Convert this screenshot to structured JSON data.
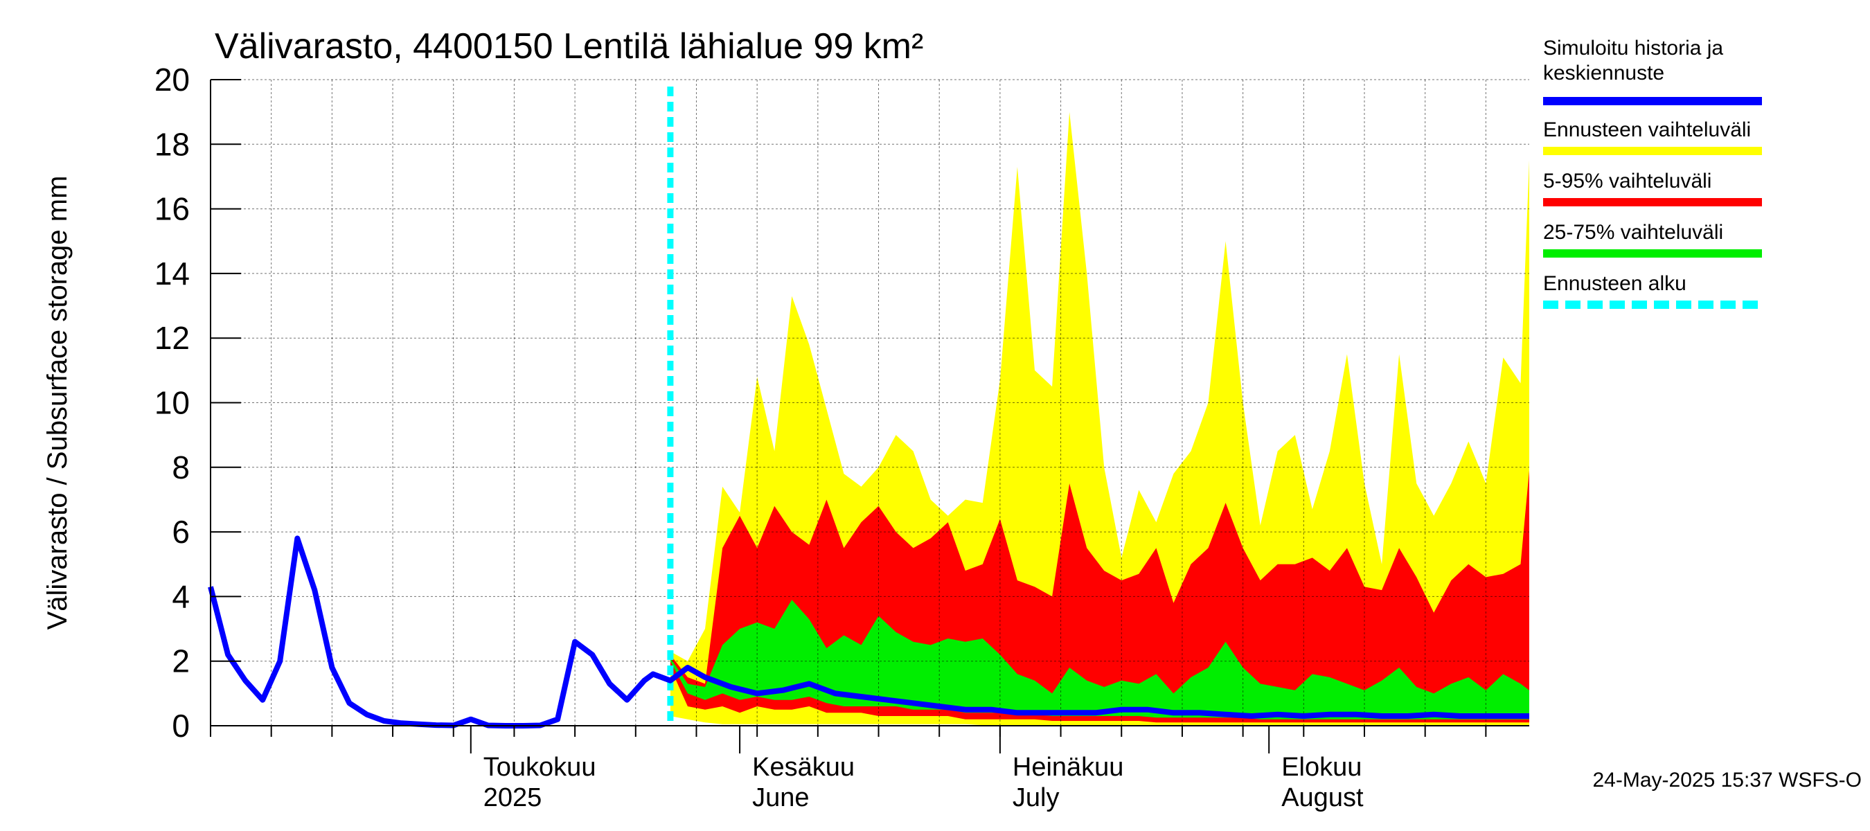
{
  "chart_data": {
    "type": "area",
    "title": "Välivarasto, 4400150 Lentilä lähialue 99 km²",
    "ylabel": "Välivarasto / Subsurface storage  mm",
    "xlabel": "",
    "ylim": [
      0,
      20
    ],
    "y_ticks": [
      "0",
      "2",
      "4",
      "6",
      "8",
      "10",
      "12",
      "14",
      "16",
      "18",
      "20"
    ],
    "x_start": "2025-04-01",
    "x_end": "2025-08-31",
    "month_labels": [
      {
        "date": "2025-05-01",
        "line1": "Toukokuu",
        "line2": "2025"
      },
      {
        "date": "2025-06-01",
        "line1": "Kesäkuu",
        "line2": "June"
      },
      {
        "date": "2025-07-01",
        "line1": "Heinäkuu",
        "line2": "July"
      },
      {
        "date": "2025-08-01",
        "line1": "Elokuu",
        "line2": "August"
      }
    ],
    "forecast_start": "2025-05-24",
    "grid": true,
    "legend_position": "right",
    "colors": {
      "history": "#0000ff",
      "full_range": "#ffff00",
      "p5_95": "#ff0000",
      "p25_75": "#00ee00",
      "forecast_start": "#00ffff"
    },
    "series": [
      {
        "name": "Simuloitu historia ja keskiennuste",
        "type": "line",
        "x": [
          "2025-04-01",
          "2025-04-03",
          "2025-04-05",
          "2025-04-07",
          "2025-04-09",
          "2025-04-11",
          "2025-04-13",
          "2025-04-15",
          "2025-04-17",
          "2025-04-19",
          "2025-04-21",
          "2025-04-23",
          "2025-04-25",
          "2025-04-27",
          "2025-04-29",
          "2025-05-01",
          "2025-05-03",
          "2025-05-05",
          "2025-05-07",
          "2025-05-09",
          "2025-05-11",
          "2025-05-13",
          "2025-05-15",
          "2025-05-17",
          "2025-05-19",
          "2025-05-21",
          "2025-05-22",
          "2025-05-24",
          "2025-05-26",
          "2025-05-28",
          "2025-05-31",
          "2025-06-03",
          "2025-06-06",
          "2025-06-09",
          "2025-06-12",
          "2025-06-15",
          "2025-06-18",
          "2025-06-21",
          "2025-06-24",
          "2025-06-27",
          "2025-06-30",
          "2025-07-03",
          "2025-07-06",
          "2025-07-09",
          "2025-07-12",
          "2025-07-15",
          "2025-07-18",
          "2025-07-21",
          "2025-07-24",
          "2025-07-27",
          "2025-07-30",
          "2025-08-02",
          "2025-08-05",
          "2025-08-08",
          "2025-08-11",
          "2025-08-14",
          "2025-08-17",
          "2025-08-20",
          "2025-08-23",
          "2025-08-26",
          "2025-08-29",
          "2025-08-31"
        ],
        "y": [
          4.3,
          2.2,
          1.4,
          0.8,
          2.0,
          5.8,
          4.2,
          1.8,
          0.7,
          0.35,
          0.15,
          0.08,
          0.05,
          0.02,
          0.01,
          0.2,
          0.01,
          0.0,
          0.0,
          0.01,
          0.2,
          2.6,
          2.2,
          1.3,
          0.8,
          1.4,
          1.6,
          1.4,
          1.8,
          1.5,
          1.2,
          1.0,
          1.1,
          1.3,
          1.0,
          0.9,
          0.8,
          0.7,
          0.6,
          0.5,
          0.5,
          0.4,
          0.4,
          0.4,
          0.4,
          0.5,
          0.5,
          0.4,
          0.4,
          0.35,
          0.3,
          0.35,
          0.3,
          0.35,
          0.35,
          0.3,
          0.3,
          0.35,
          0.3,
          0.3,
          0.3,
          0.3
        ]
      },
      {
        "name": "Ennusteen vaihteluväli",
        "type": "band",
        "x": [
          "2025-05-24",
          "2025-05-26",
          "2025-05-28",
          "2025-05-30",
          "2025-06-01",
          "2025-06-03",
          "2025-06-05",
          "2025-06-07",
          "2025-06-09",
          "2025-06-11",
          "2025-06-13",
          "2025-06-15",
          "2025-06-17",
          "2025-06-19",
          "2025-06-21",
          "2025-06-23",
          "2025-06-25",
          "2025-06-27",
          "2025-06-29",
          "2025-07-01",
          "2025-07-03",
          "2025-07-05",
          "2025-07-07",
          "2025-07-09",
          "2025-07-11",
          "2025-07-13",
          "2025-07-15",
          "2025-07-17",
          "2025-07-19",
          "2025-07-21",
          "2025-07-23",
          "2025-07-25",
          "2025-07-27",
          "2025-07-29",
          "2025-07-31",
          "2025-08-02",
          "2025-08-04",
          "2025-08-06",
          "2025-08-08",
          "2025-08-10",
          "2025-08-12",
          "2025-08-14",
          "2025-08-16",
          "2025-08-18",
          "2025-08-20",
          "2025-08-22",
          "2025-08-24",
          "2025-08-26",
          "2025-08-28",
          "2025-08-30",
          "2025-08-31"
        ],
        "low": [
          0.3,
          0.2,
          0.1,
          0.05,
          0.05,
          0.05,
          0.05,
          0.05,
          0.05,
          0.05,
          0.05,
          0.05,
          0.05,
          0.05,
          0.05,
          0.05,
          0.05,
          0.05,
          0.02,
          0.02,
          0.02,
          0.02,
          0.02,
          0.02,
          0.02,
          0.02,
          0.02,
          0.02,
          0.02,
          0.02,
          0.02,
          0.02,
          0.02,
          0.02,
          0.02,
          0.02,
          0.02,
          0.02,
          0.02,
          0.02,
          0.02,
          0.02,
          0.02,
          0.02,
          0.02,
          0.02,
          0.02,
          0.02,
          0.02,
          0.02,
          0.02
        ],
        "high": [
          2.3,
          2.0,
          3.0,
          7.4,
          6.6,
          10.8,
          8.5,
          13.3,
          11.8,
          9.8,
          7.8,
          7.4,
          8.0,
          9.0,
          8.5,
          7.0,
          6.5,
          7.0,
          6.9,
          10.7,
          17.3,
          11.0,
          10.5,
          19.0,
          14.0,
          8.0,
          5.2,
          7.3,
          6.3,
          7.8,
          8.5,
          10.0,
          15.0,
          10.0,
          6.2,
          8.5,
          9.0,
          6.7,
          8.5,
          11.5,
          7.5,
          5.0,
          11.5,
          7.5,
          6.5,
          7.5,
          8.8,
          7.5,
          11.4,
          10.6,
          17.5
        ]
      },
      {
        "name": "5-95% vaihteluväli",
        "type": "band",
        "x": [
          "2025-05-24",
          "2025-05-26",
          "2025-05-28",
          "2025-05-30",
          "2025-06-01",
          "2025-06-03",
          "2025-06-05",
          "2025-06-07",
          "2025-06-09",
          "2025-06-11",
          "2025-06-13",
          "2025-06-15",
          "2025-06-17",
          "2025-06-19",
          "2025-06-21",
          "2025-06-23",
          "2025-06-25",
          "2025-06-27",
          "2025-06-29",
          "2025-07-01",
          "2025-07-03",
          "2025-07-05",
          "2025-07-07",
          "2025-07-09",
          "2025-07-11",
          "2025-07-13",
          "2025-07-15",
          "2025-07-17",
          "2025-07-19",
          "2025-07-21",
          "2025-07-23",
          "2025-07-25",
          "2025-07-27",
          "2025-07-29",
          "2025-07-31",
          "2025-08-02",
          "2025-08-04",
          "2025-08-06",
          "2025-08-08",
          "2025-08-10",
          "2025-08-12",
          "2025-08-14",
          "2025-08-16",
          "2025-08-18",
          "2025-08-20",
          "2025-08-22",
          "2025-08-24",
          "2025-08-26",
          "2025-08-28",
          "2025-08-30",
          "2025-08-31"
        ],
        "low": [
          1.8,
          0.6,
          0.5,
          0.6,
          0.4,
          0.6,
          0.5,
          0.5,
          0.6,
          0.4,
          0.4,
          0.4,
          0.3,
          0.3,
          0.3,
          0.3,
          0.3,
          0.2,
          0.2,
          0.2,
          0.2,
          0.2,
          0.15,
          0.15,
          0.15,
          0.15,
          0.15,
          0.15,
          0.1,
          0.1,
          0.1,
          0.1,
          0.1,
          0.1,
          0.1,
          0.1,
          0.1,
          0.1,
          0.1,
          0.1,
          0.1,
          0.1,
          0.1,
          0.1,
          0.1,
          0.1,
          0.1,
          0.1,
          0.1,
          0.1,
          0.1
        ],
        "high": [
          2.2,
          1.5,
          1.3,
          5.5,
          6.5,
          5.5,
          6.8,
          6.0,
          5.6,
          7.0,
          5.5,
          6.3,
          6.8,
          6.0,
          5.5,
          5.8,
          6.3,
          4.8,
          5.0,
          6.4,
          4.5,
          4.3,
          4.0,
          7.5,
          5.5,
          4.8,
          4.5,
          4.7,
          5.5,
          3.8,
          5.0,
          5.5,
          6.9,
          5.5,
          4.5,
          5.0,
          5.0,
          5.2,
          4.8,
          5.5,
          4.3,
          4.2,
          5.5,
          4.6,
          3.5,
          4.5,
          5.0,
          4.6,
          4.7,
          5.0,
          7.9
        ]
      },
      {
        "name": "25-75% vaihteluväli",
        "type": "band",
        "x": [
          "2025-05-24",
          "2025-05-26",
          "2025-05-28",
          "2025-05-30",
          "2025-06-01",
          "2025-06-03",
          "2025-06-05",
          "2025-06-07",
          "2025-06-09",
          "2025-06-11",
          "2025-06-13",
          "2025-06-15",
          "2025-06-17",
          "2025-06-19",
          "2025-06-21",
          "2025-06-23",
          "2025-06-25",
          "2025-06-27",
          "2025-06-29",
          "2025-07-01",
          "2025-07-03",
          "2025-07-05",
          "2025-07-07",
          "2025-07-09",
          "2025-07-11",
          "2025-07-13",
          "2025-07-15",
          "2025-07-17",
          "2025-07-19",
          "2025-07-21",
          "2025-07-23",
          "2025-07-25",
          "2025-07-27",
          "2025-07-29",
          "2025-07-31",
          "2025-08-02",
          "2025-08-04",
          "2025-08-06",
          "2025-08-08",
          "2025-08-10",
          "2025-08-12",
          "2025-08-14",
          "2025-08-16",
          "2025-08-18",
          "2025-08-20",
          "2025-08-22",
          "2025-08-24",
          "2025-08-26",
          "2025-08-28",
          "2025-08-30",
          "2025-08-31"
        ],
        "low": [
          2.0,
          1.0,
          0.8,
          1.0,
          0.8,
          0.9,
          0.8,
          0.8,
          0.9,
          0.7,
          0.6,
          0.6,
          0.6,
          0.6,
          0.5,
          0.5,
          0.5,
          0.4,
          0.4,
          0.4,
          0.35,
          0.35,
          0.3,
          0.3,
          0.3,
          0.3,
          0.3,
          0.3,
          0.25,
          0.25,
          0.25,
          0.25,
          0.25,
          0.25,
          0.2,
          0.2,
          0.2,
          0.2,
          0.2,
          0.2,
          0.2,
          0.2,
          0.2,
          0.2,
          0.2,
          0.2,
          0.2,
          0.2,
          0.2,
          0.2,
          0.2
        ],
        "high": [
          2.1,
          1.3,
          1.2,
          2.5,
          3.0,
          3.2,
          3.0,
          3.9,
          3.3,
          2.4,
          2.8,
          2.5,
          3.4,
          2.9,
          2.6,
          2.5,
          2.7,
          2.6,
          2.7,
          2.2,
          1.6,
          1.4,
          1.0,
          1.8,
          1.4,
          1.2,
          1.4,
          1.3,
          1.6,
          1.0,
          1.5,
          1.8,
          2.6,
          1.8,
          1.3,
          1.2,
          1.1,
          1.6,
          1.5,
          1.3,
          1.1,
          1.4,
          1.8,
          1.2,
          1.0,
          1.3,
          1.5,
          1.1,
          1.6,
          1.3,
          1.1
        ]
      }
    ],
    "legend": [
      {
        "label": "Simuloitu historia ja keskiennuste",
        "color": "#0000ff",
        "style": "solid"
      },
      {
        "label": "Ennusteen vaihteluväli",
        "color": "#ffff00",
        "style": "solid"
      },
      {
        "label": "5-95% vaihteluväli",
        "color": "#ff0000",
        "style": "solid"
      },
      {
        "label": "25-75% vaihteluväli",
        "color": "#00ee00",
        "style": "solid"
      },
      {
        "label": "Ennusteen alku",
        "color": "#00ffff",
        "style": "dashed"
      }
    ]
  },
  "footer": {
    "timestamp": "24-May-2025 15:37 WSFS-O"
  }
}
